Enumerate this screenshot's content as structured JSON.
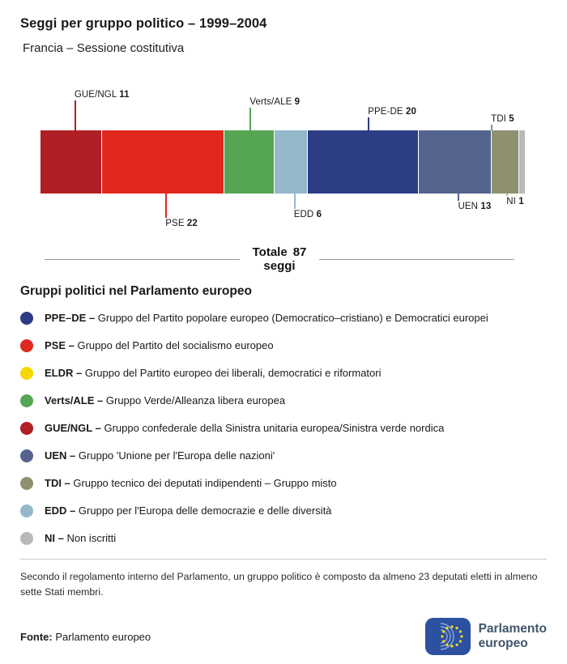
{
  "header": {
    "title": "Seggi per gruppo politico – 1999–2004",
    "subtitle": "Francia – Sessione costitutiva"
  },
  "chart_data": {
    "type": "bar",
    "title": "Seggi per gruppo politico – 1999–2004",
    "subtitle": "Francia – Sessione costitutiva",
    "total_label": "Totale",
    "total_seats": 87,
    "total_unit": "seggi",
    "segments": [
      {
        "name": "GUE/NGL",
        "value": 11,
        "color": "#b01f24",
        "label_side": "above"
      },
      {
        "name": "PSE",
        "value": 22,
        "color": "#e0281e",
        "label_side": "below"
      },
      {
        "name": "Verts/ALE",
        "value": 9,
        "color": "#55a554",
        "label_side": "above"
      },
      {
        "name": "EDD",
        "value": 6,
        "color": "#93b8ca",
        "label_side": "below"
      },
      {
        "name": "PPE-DE",
        "value": 20,
        "color": "#2c3d86",
        "label_side": "above"
      },
      {
        "name": "UEN",
        "value": 13,
        "color": "#54648f",
        "label_side": "below"
      },
      {
        "name": "TDI",
        "value": 5,
        "color": "#8f9070",
        "label_side": "above"
      },
      {
        "name": "NI",
        "value": 1,
        "color": "#b8b8b8",
        "label_side": "below"
      }
    ]
  },
  "legend": {
    "title": "Gruppi politici nel Parlamento europeo",
    "items": [
      {
        "abbr": "PPE–DE –",
        "desc": "Gruppo del Partito popolare europeo (Democratico–cristiano) e Democratici europei",
        "color": "#2c3d86"
      },
      {
        "abbr": "PSE –",
        "desc": "Gruppo del Partito del socialismo europeo",
        "color": "#e0281e"
      },
      {
        "abbr": "ELDR –",
        "desc": "Gruppo del Partito europeo dei liberali, democratici e riformatori",
        "color": "#f5d800"
      },
      {
        "abbr": "Verts/ALE –",
        "desc": "Gruppo Verde/Alleanza libera europea",
        "color": "#55a554"
      },
      {
        "abbr": "GUE/NGL –",
        "desc": "Gruppo confederale della Sinistra unitaria europea/Sinistra verde nordica",
        "color": "#b01f24"
      },
      {
        "abbr": "UEN –",
        "desc": "Gruppo 'Unione per l'Europa delle nazioni'",
        "color": "#54648f"
      },
      {
        "abbr": "TDI –",
        "desc": "Gruppo tecnico dei deputati indipendenti – Gruppo misto",
        "color": "#8f9070"
      },
      {
        "abbr": "EDD –",
        "desc": "Gruppo per l'Europa delle democrazie e delle diversità",
        "color": "#93b8ca"
      },
      {
        "abbr": "NI –",
        "desc": "Non iscritti",
        "color": "#b8b8b8"
      }
    ]
  },
  "footnote": "Secondo il regolamento interno del Parlamento, un gruppo politico è composto da almeno 23 deputati eletti in almeno sette Stati membri.",
  "source": {
    "label": "Fonte:",
    "text": "Parlamento europeo"
  },
  "logo": {
    "line1": "Parlamento",
    "line2": "europeo"
  }
}
